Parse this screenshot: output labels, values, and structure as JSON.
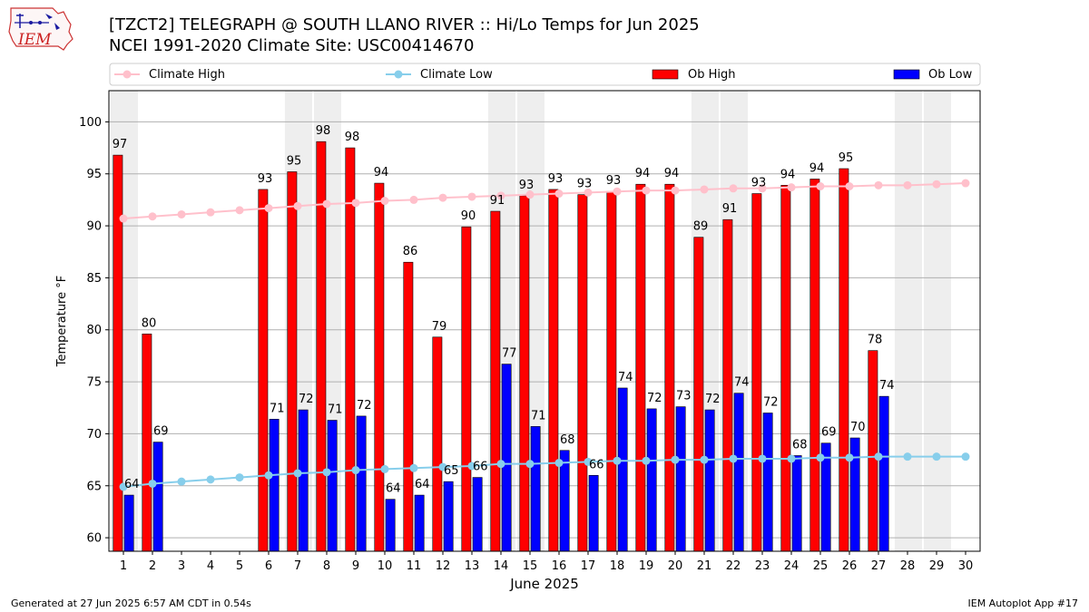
{
  "header": {
    "logo_text": "IEM",
    "title_line1": "[TZCT2] TELEGRAPH @ SOUTH LLANO RIVER :: Hi/Lo Temps for Jun 2025",
    "title_line2": "NCEI 1991-2020 Climate Site: USC00414670"
  },
  "footer": {
    "left": "Generated at 27 Jun 2025 6:57 AM CDT in 0.54s",
    "right": "IEM Autoplot App #17"
  },
  "colors": {
    "ob_high": "#ff0000",
    "ob_low": "#0000ff",
    "climate_high": "#ffc0cb",
    "climate_low": "#87ceeb",
    "weekend_shade": "#eeeeee",
    "grid": "#b0b0b0"
  },
  "chart_data": {
    "type": "bar",
    "xlabel": "June 2025",
    "ylabel": "Temperature °F",
    "ylim": [
      58.7,
      103
    ],
    "yticks": [
      60,
      65,
      70,
      75,
      80,
      85,
      90,
      95,
      100
    ],
    "grid": "horizontal",
    "legend_position": "top",
    "shaded_days": [
      1,
      7,
      8,
      14,
      15,
      21,
      22,
      28,
      29
    ],
    "categories": [
      "1",
      "2",
      "3",
      "4",
      "5",
      "6",
      "7",
      "8",
      "9",
      "10",
      "11",
      "12",
      "13",
      "14",
      "15",
      "16",
      "17",
      "18",
      "19",
      "20",
      "21",
      "22",
      "23",
      "24",
      "25",
      "26",
      "27",
      "28",
      "29",
      "30"
    ],
    "bar_series": [
      {
        "name": "Ob High",
        "color": "#ff0000",
        "values": [
          96.8,
          79.6,
          null,
          null,
          null,
          93.5,
          95.2,
          98.1,
          97.5,
          94.1,
          86.5,
          79.3,
          89.9,
          91.4,
          92.9,
          93.5,
          93.0,
          93.3,
          94.0,
          94.0,
          88.9,
          90.6,
          93.1,
          93.9,
          94.5,
          95.5,
          78.0,
          null,
          null,
          null
        ],
        "labels": [
          "97",
          "80",
          "",
          "",
          "",
          "93",
          "95",
          "98",
          "98",
          "94",
          "86",
          "79",
          "90",
          "91",
          "93",
          "93",
          "93",
          "93",
          "94",
          "94",
          "89",
          "91",
          "93",
          "94",
          "94",
          "95",
          "78",
          "",
          "",
          ""
        ]
      },
      {
        "name": "Ob Low",
        "color": "#0000ff",
        "values": [
          64.1,
          69.2,
          null,
          null,
          null,
          71.4,
          72.3,
          71.3,
          71.7,
          63.7,
          64.1,
          65.4,
          65.8,
          76.7,
          70.7,
          68.4,
          66.0,
          74.4,
          72.4,
          72.6,
          72.3,
          73.9,
          72.0,
          67.9,
          69.1,
          69.6,
          73.6,
          null,
          null,
          null
        ],
        "labels": [
          "64",
          "69",
          "",
          "",
          "",
          "71",
          "72",
          "71",
          "72",
          "64",
          "64",
          "65",
          "66",
          "77",
          "71",
          "68",
          "66",
          "74",
          "72",
          "73",
          "72",
          "74",
          "72",
          "68",
          "69",
          "70",
          "74",
          "",
          "",
          ""
        ]
      }
    ],
    "line_series": [
      {
        "name": "Climate High",
        "color": "#ffc0cb",
        "values": [
          90.7,
          90.9,
          91.1,
          91.3,
          91.5,
          91.7,
          91.9,
          92.1,
          92.2,
          92.4,
          92.5,
          92.7,
          92.8,
          92.9,
          93.0,
          93.1,
          93.2,
          93.3,
          93.4,
          93.4,
          93.5,
          93.6,
          93.6,
          93.7,
          93.8,
          93.8,
          93.9,
          93.9,
          94.0,
          94.1
        ]
      },
      {
        "name": "Climate Low",
        "color": "#87ceeb",
        "values": [
          64.9,
          65.2,
          65.4,
          65.6,
          65.8,
          66.0,
          66.2,
          66.3,
          66.5,
          66.6,
          66.7,
          66.8,
          66.9,
          67.1,
          67.1,
          67.2,
          67.3,
          67.4,
          67.4,
          67.5,
          67.5,
          67.6,
          67.6,
          67.6,
          67.7,
          67.7,
          67.8,
          67.8,
          67.8,
          67.8
        ]
      }
    ]
  }
}
